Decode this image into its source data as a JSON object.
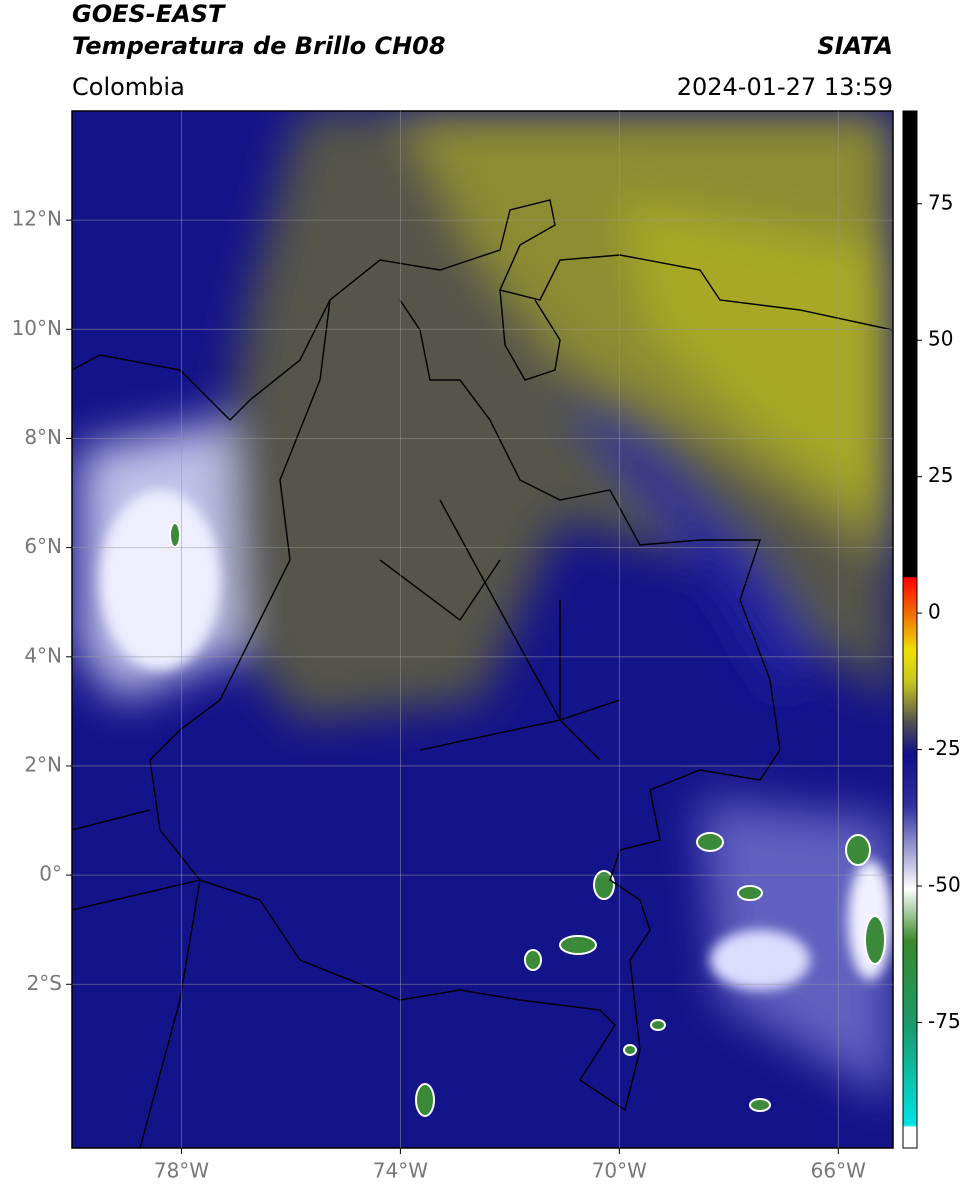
{
  "header": {
    "title": "GOES-EAST",
    "subtitle": "Temperatura de Brillo CH08",
    "source": "SIATA",
    "region": "Colombia",
    "datetime": "2024-01-27 13:59"
  },
  "map": {
    "xlim": [
      -80,
      -65
    ],
    "ylim": [
      -5,
      14
    ],
    "xticks": [
      {
        "value": -78,
        "label": "78°W"
      },
      {
        "value": -74,
        "label": "74°W"
      },
      {
        "value": -70,
        "label": "70°W"
      },
      {
        "value": -66,
        "label": "66°W"
      }
    ],
    "yticks": [
      {
        "value": -2,
        "label": "2°S"
      },
      {
        "value": 0,
        "label": "0°"
      },
      {
        "value": 2,
        "label": "2°N"
      },
      {
        "value": 4,
        "label": "4°N"
      },
      {
        "value": 6,
        "label": "6°N"
      },
      {
        "value": 8,
        "label": "8°N"
      },
      {
        "value": 10,
        "label": "10°N"
      },
      {
        "value": 12,
        "label": "12°N"
      }
    ],
    "grid": true
  },
  "colorbar": {
    "lim": [
      -98,
      92
    ],
    "ticks": [
      -75,
      -50,
      -25,
      0,
      25,
      50,
      75
    ]
  }
}
